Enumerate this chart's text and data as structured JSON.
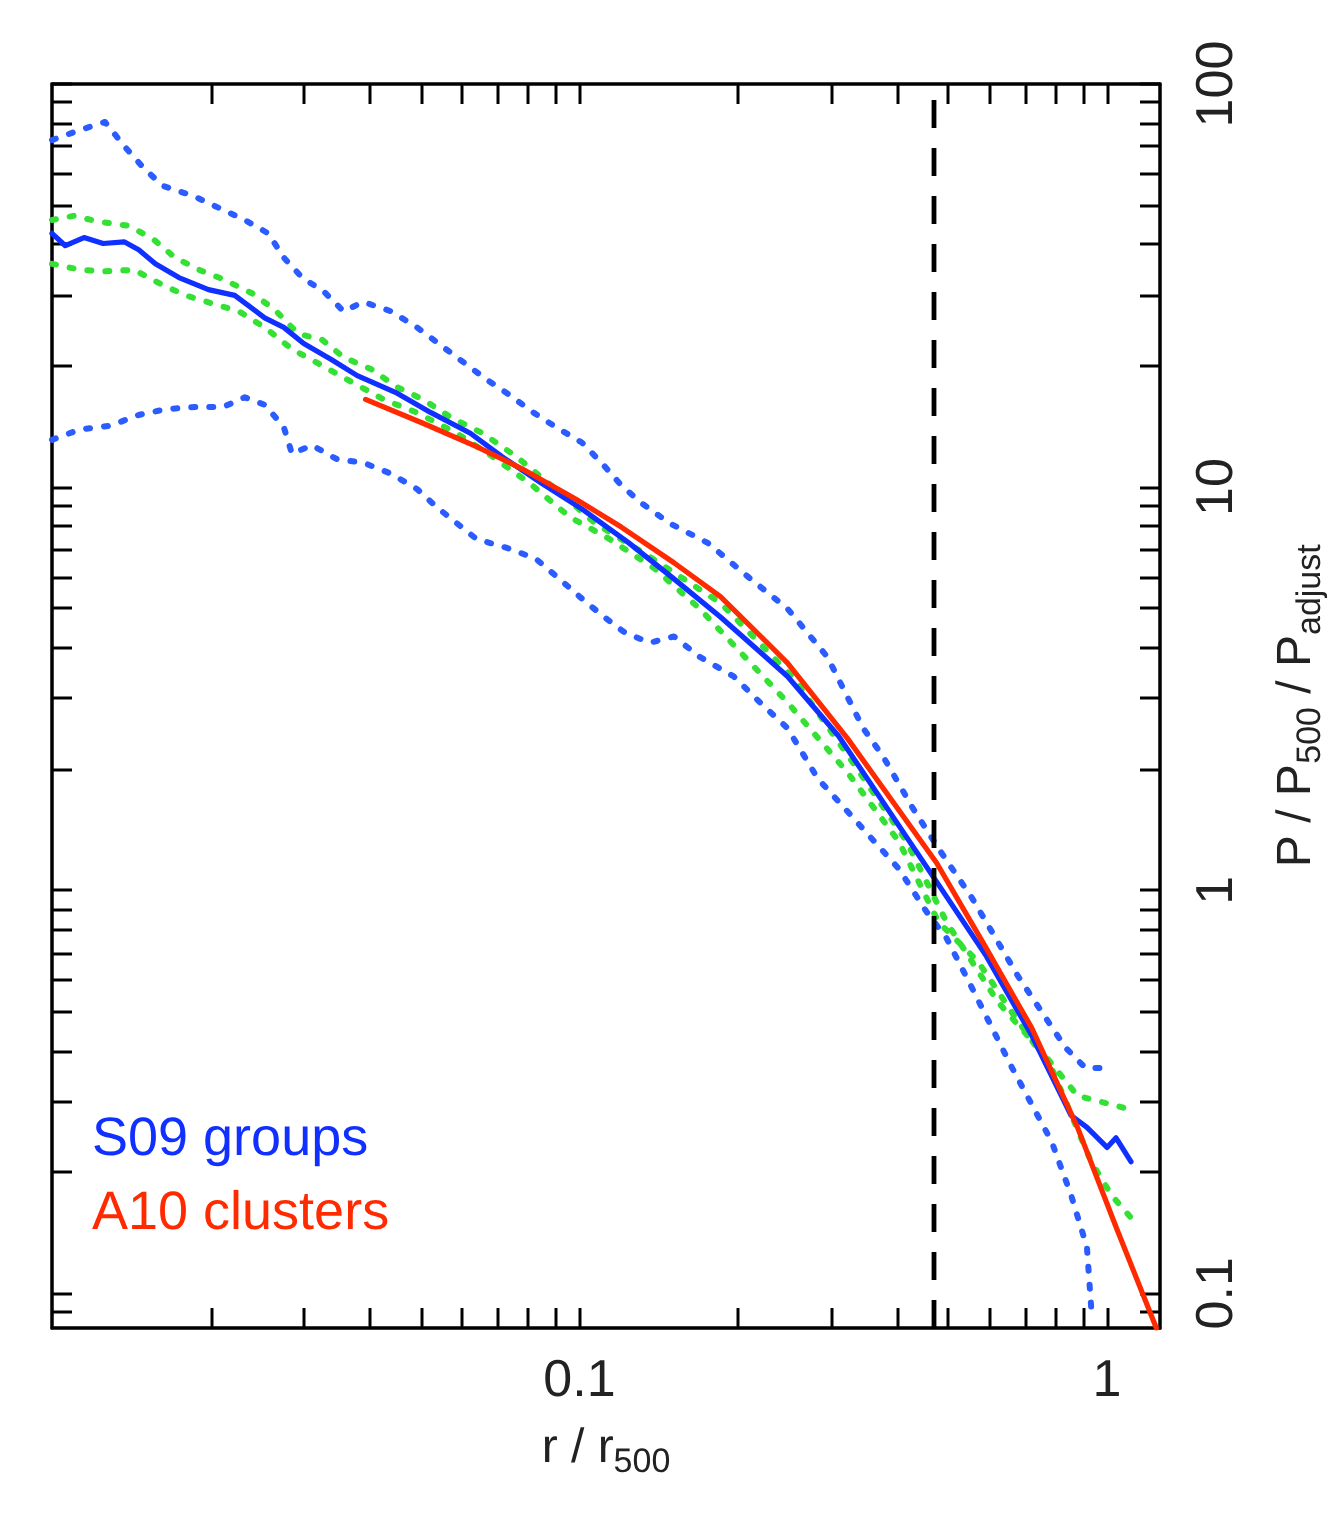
{
  "chart_data": {
    "type": "line",
    "xlabel": "r / r$_{500}$",
    "ylabel": "P / P$_{500}$ / P$_{adjust}$",
    "log": "xy",
    "xlim": [
      0.01,
      1.26
    ],
    "ylim": [
      0.082,
      100
    ],
    "xticks": [
      {
        "value": 0.02,
        "label": null
      },
      {
        "value": 0.03,
        "label": null
      },
      {
        "value": 0.04,
        "label": null
      },
      {
        "value": 0.05,
        "label": null
      },
      {
        "value": 0.06,
        "label": null
      },
      {
        "value": 0.07,
        "label": null
      },
      {
        "value": 0.08,
        "label": null
      },
      {
        "value": 0.09,
        "label": null
      },
      0.1,
      {
        "value": 0.2,
        "label": null
      },
      {
        "value": 0.3,
        "label": null
      },
      {
        "value": 0.4,
        "label": null
      },
      {
        "value": 0.5,
        "label": null
      },
      {
        "value": 0.6,
        "label": null
      },
      {
        "value": 0.7,
        "label": null
      },
      {
        "value": 0.8,
        "label": null
      },
      {
        "value": 0.9,
        "label": null
      },
      1
    ],
    "yticks": [
      {
        "value": 0.09,
        "label": null
      },
      0.1,
      {
        "value": 0.2,
        "label": null
      },
      {
        "value": 0.3,
        "label": null
      },
      {
        "value": 0.4,
        "label": null
      },
      {
        "value": 0.5,
        "label": null
      },
      {
        "value": 0.6,
        "label": null
      },
      {
        "value": 0.7,
        "label": null
      },
      {
        "value": 0.8,
        "label": null
      },
      {
        "value": 0.9,
        "label": null
      },
      1,
      {
        "value": 2,
        "label": null
      },
      {
        "value": 3,
        "label": null
      },
      {
        "value": 4,
        "label": null
      },
      {
        "value": 5,
        "label": null
      },
      {
        "value": 6,
        "label": null
      },
      {
        "value": 7,
        "label": null
      },
      {
        "value": 8,
        "label": null
      },
      {
        "value": 9,
        "label": null
      },
      10,
      {
        "value": 20,
        "label": null
      },
      {
        "value": 30,
        "label": null
      },
      {
        "value": 40,
        "label": null
      },
      {
        "value": 50,
        "label": null
      },
      {
        "value": 60,
        "label": null
      },
      {
        "value": 70,
        "label": null
      },
      {
        "value": 80,
        "label": null
      },
      {
        "value": 90,
        "label": null
      },
      100
    ],
    "grid": false,
    "legend": "bottom left",
    "marker": "none",
    "ref_lines": [
      {
        "axis": "x",
        "value": 0.475,
        "color": "#000000",
        "line_style": "dashed"
      }
    ],
    "series": [
      {
        "color": "#2a5cff",
        "line_style": "dotted",
        "x": [
          0.01,
          0.0113,
          0.0126,
          0.0137,
          0.0149,
          0.0162,
          0.0185,
          0.0207,
          0.0232,
          0.0257,
          0.0275,
          0.0298,
          0.0328,
          0.0357,
          0.0389,
          0.0439,
          0.0492,
          0.0585,
          0.0666,
          0.0738,
          0.0812,
          0.0901,
          0.101,
          0.11,
          0.12,
          0.131,
          0.148,
          0.175,
          0.209,
          0.248,
          0.295,
          0.345,
          0.376,
          0.428,
          0.479,
          0.555,
          0.678,
          0.834,
          0.91,
          0.991
        ],
        "values": [
          72.6,
          76.9,
          80.5,
          70.2,
          62.0,
          55.9,
          52.8,
          49.3,
          46.0,
          42.6,
          37.1,
          33.1,
          30.5,
          27.3,
          28.8,
          27.3,
          24.9,
          21.0,
          18.5,
          16.9,
          15.4,
          14.1,
          12.9,
          11.5,
          10.1,
          9.13,
          8.14,
          7.27,
          5.98,
          4.99,
          3.79,
          2.52,
          2.15,
          1.6,
          1.27,
          0.955,
          0.612,
          0.407,
          0.362,
          0.362
        ]
      },
      {
        "color": "#2a5cff",
        "line_style": "dotted",
        "x": [
          0.01,
          0.0113,
          0.0129,
          0.0146,
          0.0164,
          0.0187,
          0.0211,
          0.0232,
          0.0253,
          0.0275,
          0.0285,
          0.0311,
          0.0348,
          0.0389,
          0.0439,
          0.0492,
          0.0536,
          0.0638,
          0.0738,
          0.0826,
          0.0916,
          0.1,
          0.11,
          0.122,
          0.136,
          0.151,
          0.169,
          0.196,
          0.22,
          0.248,
          0.283,
          0.311,
          0.37,
          0.403,
          0.455,
          0.496,
          0.555,
          0.661,
          0.785,
          0.855,
          0.916,
          0.933
        ],
        "values": [
          13.1,
          13.9,
          14.2,
          15.1,
          15.6,
          15.8,
          15.8,
          16.7,
          16.0,
          14.1,
          12.1,
          12.7,
          11.7,
          11.5,
          10.8,
          9.89,
          8.92,
          7.43,
          7.03,
          6.64,
          5.92,
          5.35,
          4.82,
          4.35,
          4.11,
          4.26,
          3.79,
          3.39,
          2.92,
          2.52,
          1.89,
          1.65,
          1.28,
          1.13,
          0.883,
          0.761,
          0.571,
          0.362,
          0.238,
          0.175,
          0.13,
          0.0923
        ]
      },
      {
        "color": "#33e033",
        "line_style": "dotted",
        "x": [
          0.01,
          0.011,
          0.0123,
          0.014,
          0.0156,
          0.0171,
          0.019,
          0.0212,
          0.024,
          0.0264,
          0.0293,
          0.0325,
          0.0357,
          0.0403,
          0.0451,
          0.0505,
          0.057,
          0.0655,
          0.0759,
          0.0901,
          0.107,
          0.136,
          0.185,
          0.255,
          0.33,
          0.417,
          0.496,
          0.621,
          0.764,
          0.879,
          1.04,
          1.08
        ],
        "values": [
          46.0,
          47.1,
          45.5,
          44.5,
          41.1,
          37.1,
          34.6,
          32.7,
          30.2,
          27.6,
          24.0,
          23.2,
          21.0,
          19.6,
          17.7,
          16.5,
          14.9,
          13.6,
          11.9,
          9.89,
          8.14,
          6.71,
          5.16,
          3.35,
          2.07,
          1.32,
          0.834,
          0.528,
          0.388,
          0.309,
          0.292,
          0.288
        ]
      },
      {
        "color": "#33e033",
        "line_style": "dotted",
        "x": [
          0.01,
          0.0113,
          0.0126,
          0.0143,
          0.016,
          0.0179,
          0.0202,
          0.0226,
          0.0253,
          0.0285,
          0.0319,
          0.0357,
          0.0425,
          0.0492,
          0.0585,
          0.0678,
          0.0806,
          0.0958,
          0.114,
          0.139,
          0.169,
          0.248,
          0.322,
          0.403,
          0.479,
          0.57,
          0.671,
          0.785,
          0.933,
          1.02,
          1.11
        ],
        "values": [
          35.8,
          34.6,
          34.3,
          34.6,
          32.0,
          29.9,
          28.5,
          27.3,
          24.9,
          22.0,
          20.3,
          18.7,
          16.5,
          15.3,
          13.6,
          12.0,
          10.2,
          8.43,
          7.43,
          6.27,
          4.99,
          2.92,
          1.96,
          1.32,
          0.834,
          0.664,
          0.482,
          0.362,
          0.212,
          0.175,
          0.154
        ]
      },
      {
        "name": "S09 groups",
        "color": "#1030ff",
        "line_style": "solid",
        "x": [
          0.01,
          0.0106,
          0.0115,
          0.0125,
          0.0137,
          0.0146,
          0.0157,
          0.0174,
          0.0198,
          0.0222,
          0.0253,
          0.0275,
          0.03,
          0.0339,
          0.0379,
          0.0451,
          0.0523,
          0.0621,
          0.0713,
          0.0849,
          0.101,
          0.124,
          0.151,
          0.185,
          0.248,
          0.31,
          0.475,
          0.59,
          0.72,
          0.855,
          0.916,
          1.0,
          1.04,
          1.11
        ],
        "values": [
          42.6,
          39.7,
          41.6,
          40.2,
          40.6,
          38.8,
          35.8,
          33.1,
          30.9,
          29.9,
          26.3,
          24.9,
          22.7,
          20.7,
          18.9,
          17.1,
          15.3,
          13.6,
          11.9,
          10.2,
          8.83,
          7.27,
          5.92,
          4.76,
          3.39,
          2.41,
          1.05,
          0.687,
          0.436,
          0.276,
          0.258,
          0.23,
          0.243,
          0.212
        ]
      },
      {
        "name": "A10 clusters",
        "color": "#ff2a00",
        "line_style": "solid",
        "x": [
          0.0393,
          0.0505,
          0.0638,
          0.0778,
          0.0983,
          0.12,
          0.151,
          0.185,
          0.248,
          0.322,
          0.475,
          0.59,
          0.72,
          0.879,
          1.04,
          1.24
        ],
        "values": [
          16.5,
          14.4,
          12.6,
          11.1,
          9.34,
          7.96,
          6.49,
          5.35,
          3.66,
          2.38,
          1.17,
          0.718,
          0.455,
          0.258,
          0.146,
          0.082
        ]
      }
    ]
  }
}
